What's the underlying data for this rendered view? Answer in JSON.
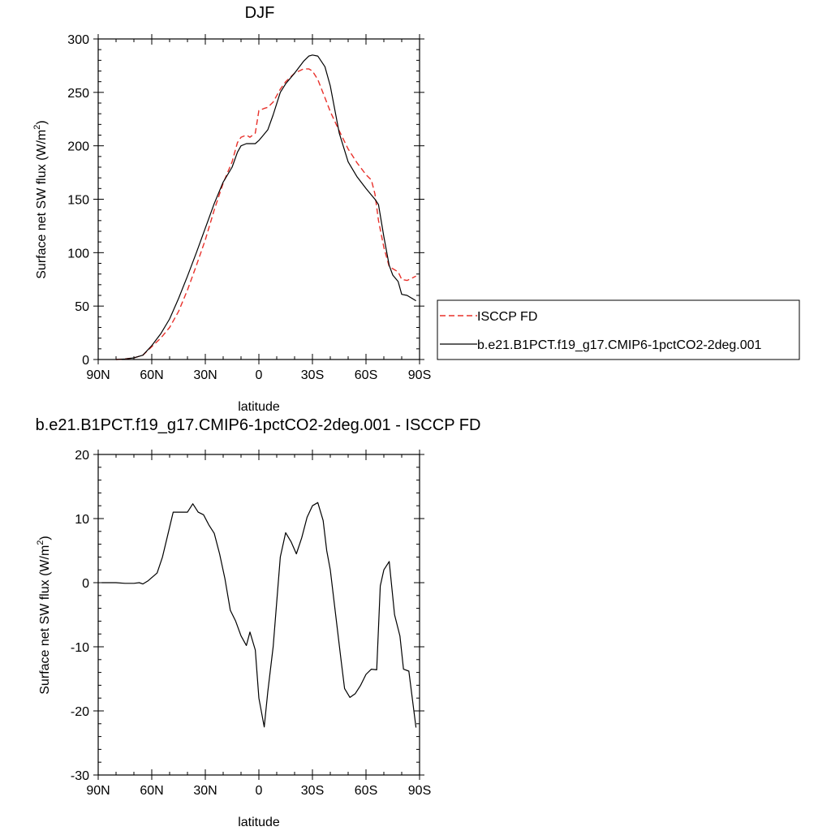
{
  "chart_data": [
    {
      "type": "line",
      "title": "DJF",
      "xlabel": "latitude",
      "ylabel": "Surface net SW flux (W/m²)",
      "ylabel_main": "Surface net SW flux (W/m",
      "ylabel_sup": "2",
      "ylabel_end": ")",
      "xlim": [
        -90,
        90
      ],
      "ylim": [
        0,
        300
      ],
      "xticks": [
        -90,
        -60,
        -30,
        0,
        30,
        60,
        90
      ],
      "xtick_labels": [
        "90N",
        "60N",
        "30N",
        "0",
        "30S",
        "60S",
        "90S"
      ],
      "yticks": [
        0,
        50,
        100,
        150,
        200,
        250,
        300
      ],
      "ytick_labels": [
        "0",
        "50",
        "100",
        "150",
        "200",
        "250",
        "300"
      ],
      "legend": {
        "placement": "right"
      },
      "series": [
        {
          "name": "ISCCP FD",
          "color": "#e8302a",
          "dash": "dashed",
          "x": [
            -80,
            -75,
            -70,
            -65,
            -60,
            -55,
            -50,
            -45,
            -40,
            -35,
            -30,
            -25,
            -20,
            -15,
            -12,
            -10,
            -7,
            -5,
            -2,
            0,
            3,
            5,
            8,
            12,
            15,
            20,
            25,
            28,
            30,
            33,
            37,
            40,
            45,
            50,
            55,
            60,
            63,
            65,
            67,
            70,
            73,
            75,
            78,
            80,
            83,
            88
          ],
          "y": [
            0,
            0.5,
            1.5,
            4,
            12,
            20,
            30,
            45,
            65,
            88,
            112,
            140,
            165,
            185,
            203,
            208,
            210,
            208,
            212,
            233,
            235,
            236,
            241,
            253,
            260,
            268,
            272,
            272,
            270,
            262,
            245,
            232,
            214,
            197,
            184,
            173,
            168,
            155,
            130,
            105,
            87,
            85,
            82,
            75,
            74,
            78
          ]
        },
        {
          "name": "b.e21.B1PCT.f19_g17.CMIP6-1pctCO2-2deg.001",
          "color": "#000000",
          "dash": "solid",
          "x": [
            -80,
            -75,
            -70,
            -65,
            -60,
            -55,
            -50,
            -45,
            -40,
            -35,
            -30,
            -25,
            -20,
            -15,
            -12,
            -10,
            -7,
            -5,
            -2,
            0,
            3,
            5,
            8,
            12,
            15,
            20,
            25,
            28,
            30,
            33,
            37,
            40,
            45,
            50,
            55,
            60,
            63,
            65,
            67,
            70,
            73,
            75,
            78,
            80,
            83,
            88
          ],
          "y": [
            0,
            0.5,
            1.5,
            4,
            13,
            24,
            38,
            57,
            78,
            100,
            123,
            146,
            166,
            180,
            194,
            200,
            202,
            202,
            202,
            205,
            211,
            215,
            229,
            250,
            258,
            268,
            279,
            284,
            285,
            284,
            274,
            256,
            212,
            185,
            171,
            160,
            154,
            150,
            145,
            115,
            88,
            79,
            73,
            61,
            60,
            55
          ]
        }
      ]
    },
    {
      "type": "line",
      "title": "b.e21.B1PCT.f19_g17.CMIP6-1pctCO2-2deg.001 - ISCCP FD",
      "xlabel": "latitude",
      "ylabel": "Surface net SW flux (W/m²)",
      "ylabel_main": "Surface net SW flux (W/m",
      "ylabel_sup": "2",
      "ylabel_end": ")",
      "xlim": [
        -90,
        90
      ],
      "ylim": [
        -30,
        20
      ],
      "xticks": [
        -90,
        -60,
        -30,
        0,
        30,
        60,
        90
      ],
      "xtick_labels": [
        "90N",
        "60N",
        "30N",
        "0",
        "30S",
        "60S",
        "90S"
      ],
      "yticks": [
        -30,
        -20,
        -10,
        0,
        10,
        20
      ],
      "ytick_labels": [
        "-30",
        "-20",
        "-10",
        "0",
        "10",
        "20"
      ],
      "series": [
        {
          "color": "#000000",
          "dash": "solid",
          "x": [
            -88,
            -80,
            -75,
            -70,
            -67,
            -65,
            -62,
            -57,
            -54,
            -51,
            -48,
            -45,
            -40,
            -37,
            -34,
            -31,
            -28,
            -25,
            -22,
            -19,
            -16,
            -13,
            -10,
            -7,
            -5,
            -2,
            0,
            3,
            5,
            8,
            12,
            15,
            18,
            21,
            24,
            27,
            30,
            33,
            36,
            38,
            40,
            43,
            46,
            48,
            51,
            54,
            57,
            60,
            63,
            66,
            68,
            70,
            73,
            76,
            79,
            81,
            84,
            88
          ],
          "y": [
            0,
            0,
            -0.1,
            -0.1,
            0,
            -0.2,
            0.3,
            1.5,
            4,
            7.5,
            11,
            11,
            11,
            12.3,
            11,
            10.6,
            9,
            7.7,
            4.5,
            0.6,
            -4.3,
            -6,
            -8.3,
            -9.8,
            -7.7,
            -10.5,
            -18,
            -22.5,
            -17,
            -10,
            4,
            7.8,
            6.4,
            4.5,
            7,
            10.2,
            12,
            12.5,
            9.7,
            5,
            2,
            -5,
            -12,
            -16.5,
            -17.9,
            -17.3,
            -16,
            -14.3,
            -13.5,
            -13.6,
            -0.5,
            2,
            3.3,
            -5,
            -8.3,
            -13.5,
            -13.8,
            -22.6
          ]
        }
      ]
    }
  ]
}
